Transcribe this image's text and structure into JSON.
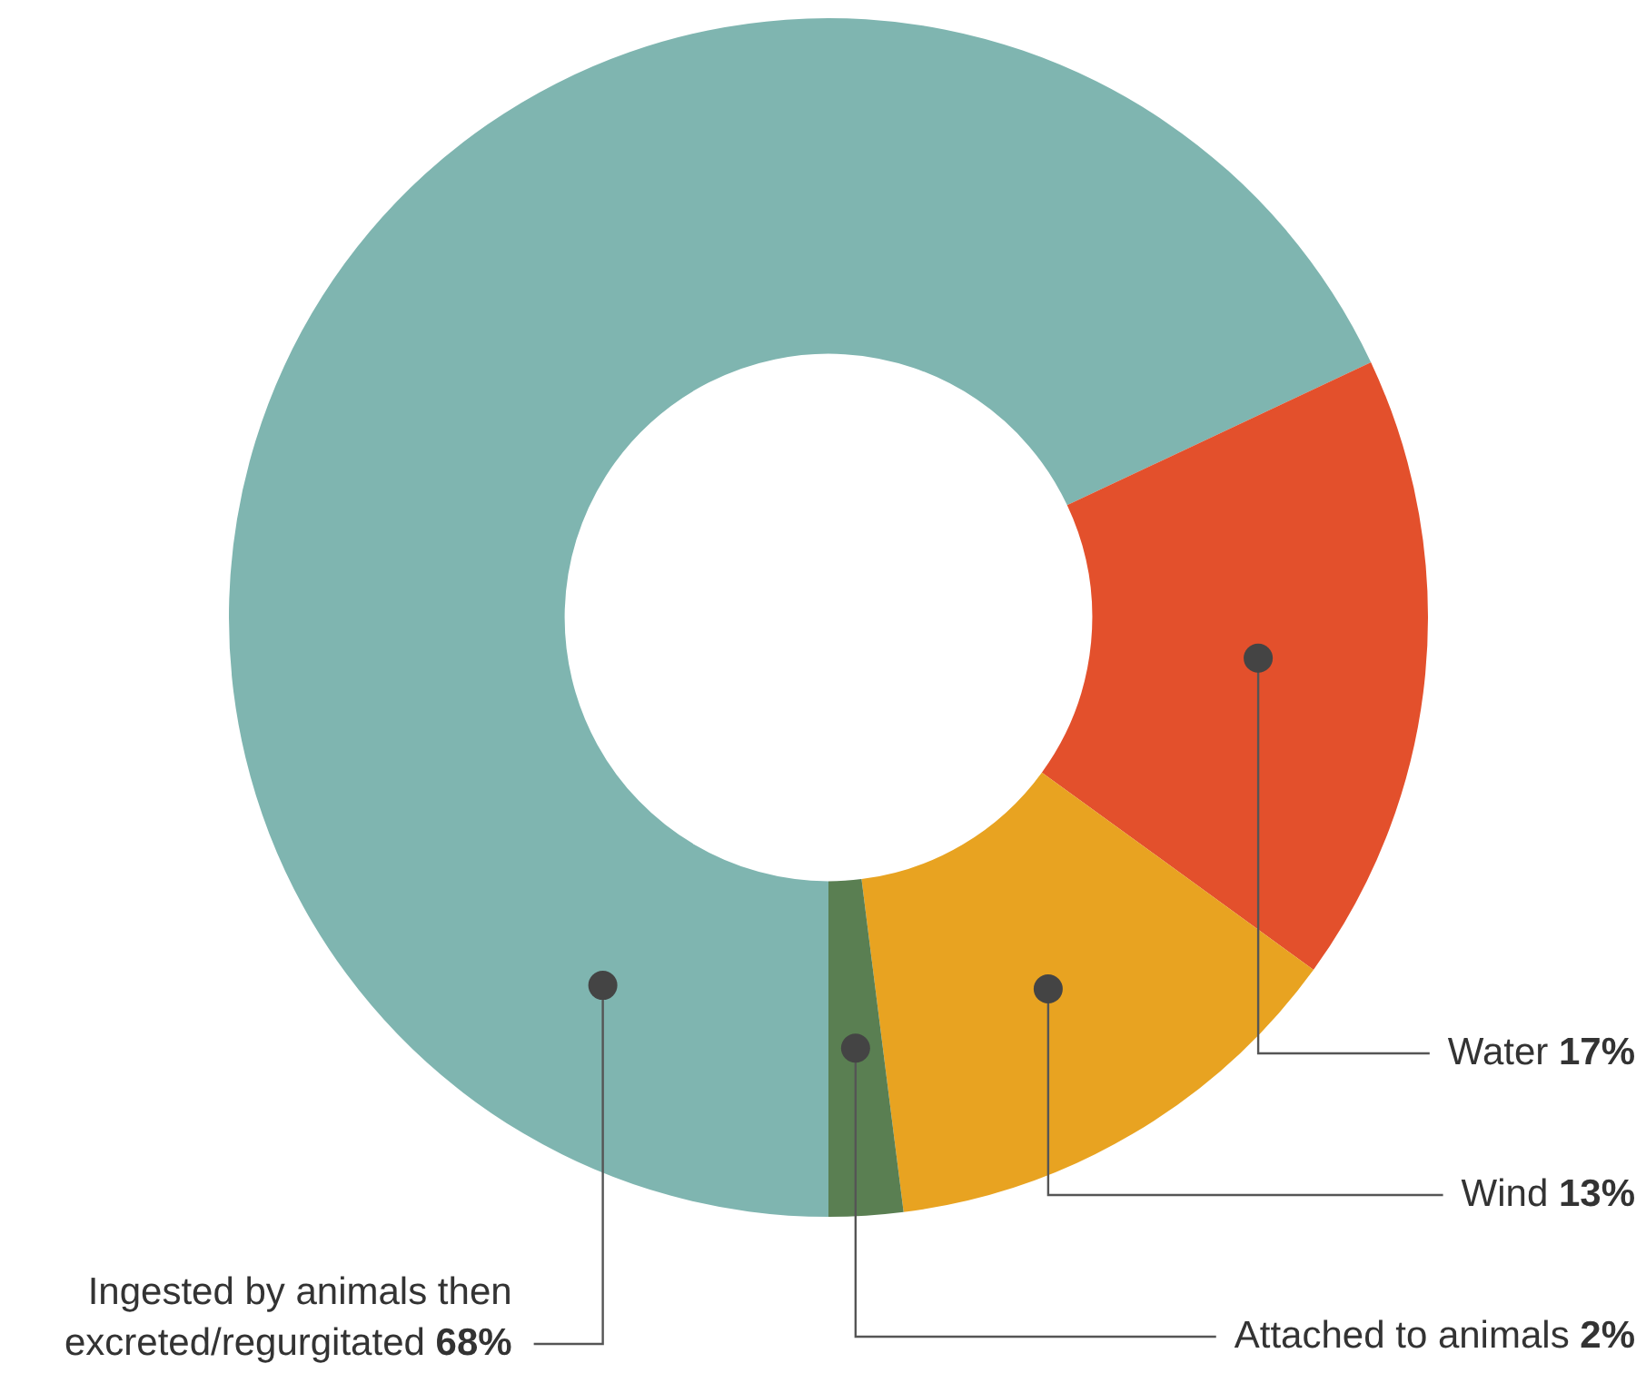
{
  "chart_data": {
    "type": "donut",
    "categories": [
      "Ingested by animals then excreted/regurgitated",
      "Water",
      "Wind",
      "Attached to animals"
    ],
    "values": [
      68,
      17,
      13,
      2
    ],
    "colors": [
      "#7fb5b0",
      "#e3502c",
      "#e8a321",
      "#5a7f52"
    ],
    "value_labels": [
      "68%",
      "17%",
      "13%",
      "2%"
    ],
    "legend": false
  }
}
